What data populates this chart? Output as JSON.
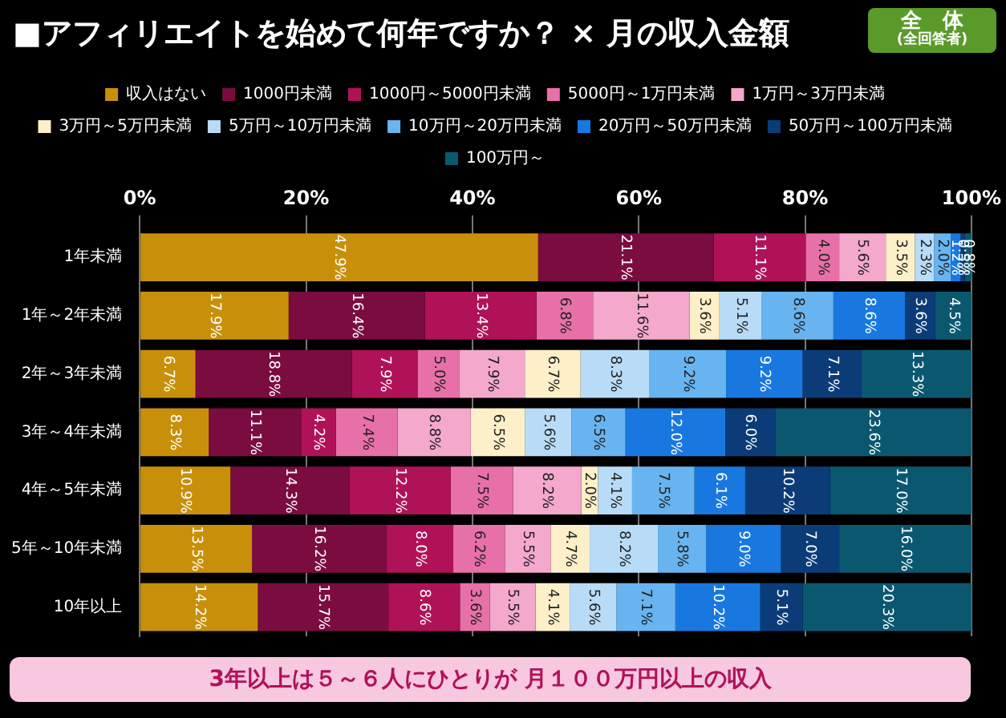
{
  "chart_data": {
    "type": "bar",
    "orientation": "horizontal",
    "stacked": true,
    "title": "■アフィリエイトを始めて何年ですか？ × 月の収入金額",
    "subtitle": "全　体 (全回答者)",
    "annotations": [
      "3年以上は５～６人にひとりが 月１００万円以上の収入"
    ],
    "categories": [
      "1年未満",
      "1年～2年未満",
      "2年～3年未満",
      "3年～4年未満",
      "4年～5年未満",
      "5年～10年未満",
      "10年以上"
    ],
    "series": [
      {
        "name": "収入はない",
        "color": "#c8900a",
        "values": [
          47.9,
          17.9,
          6.7,
          8.3,
          10.9,
          13.5,
          14.2
        ],
        "value_labels": [
          "47.9%",
          "17.9%",
          "6.7%",
          "8.3%",
          "10.9%",
          "13.5%",
          "14.2%"
        ]
      },
      {
        "name": "1000円未満",
        "color": "#7a0c40",
        "values": [
          21.1,
          16.4,
          18.8,
          11.1,
          14.3,
          16.2,
          15.7
        ],
        "value_labels": [
          "21.1%",
          "16.4%",
          "18.8%",
          "11.1%",
          "14.3%",
          "16.2%",
          "15.7%"
        ]
      },
      {
        "name": "1000円～5000円未満",
        "color": "#b01258",
        "values": [
          11.1,
          13.4,
          7.9,
          4.2,
          12.2,
          8.0,
          8.6
        ],
        "value_labels": [
          "11.1%",
          "13.4%",
          "7.9%",
          "4.2%",
          "12.2%",
          "8.0%",
          "8.6%"
        ]
      },
      {
        "name": "5000円～1万円未満",
        "color": "#e870a8",
        "values": [
          4.0,
          6.8,
          5.0,
          7.4,
          7.5,
          6.2,
          3.6
        ],
        "value_labels": [
          "4.0%",
          "6.8%",
          "5.0%",
          "7.4%",
          "7.5%",
          "6.2%",
          "3.6%"
        ]
      },
      {
        "name": "1万円～3万円未満",
        "color": "#f4a8cc",
        "values": [
          5.6,
          11.6,
          7.9,
          8.8,
          8.2,
          5.5,
          5.5
        ],
        "value_labels": [
          "5.6%",
          "11.6%",
          "7.9%",
          "8.8%",
          "8.2%",
          "5.5%",
          "5.5%"
        ]
      },
      {
        "name": "3万円～5万円未満",
        "color": "#fdf0c8",
        "values": [
          3.5,
          3.6,
          6.7,
          6.5,
          2.0,
          4.7,
          4.1
        ],
        "value_labels": [
          "3.5%",
          "3.6%",
          "6.7%",
          "6.5%",
          "2.0%",
          "4.7%",
          "4.1%"
        ]
      },
      {
        "name": "5万円～10万円未満",
        "color": "#b8dcf8",
        "values": [
          2.3,
          5.1,
          8.3,
          5.6,
          4.1,
          8.2,
          5.6
        ],
        "value_labels": [
          "2.3%",
          "5.1%",
          "8.3%",
          "5.6%",
          "4.1%",
          "8.2%",
          "5.6%"
        ]
      },
      {
        "name": "10万円～20万円未満",
        "color": "#68b4f0",
        "values": [
          2.0,
          8.6,
          9.2,
          6.5,
          7.5,
          5.8,
          7.1
        ],
        "value_labels": [
          "2.0%",
          "8.6%",
          "9.2%",
          "6.5%",
          "7.5%",
          "5.8%",
          "7.1%"
        ]
      },
      {
        "name": "20万円～50万円未満",
        "color": "#1878e0",
        "values": [
          1.2,
          8.6,
          9.2,
          12.0,
          6.1,
          9.0,
          10.2
        ],
        "value_labels": [
          "1.2%",
          "8.6%",
          "9.2%",
          "12.0%",
          "6.1%",
          "9.0%",
          "10.2%"
        ]
      },
      {
        "name": "50万円～100万円未満",
        "color": "#0c3c78",
        "values": [
          0.5,
          3.6,
          7.1,
          6.0,
          10.2,
          7.0,
          5.1
        ],
        "value_labels": [
          "0.5%",
          "3.6%",
          "7.1%",
          "6.0%",
          "10.2%",
          "7.0%",
          "5.1%"
        ]
      },
      {
        "name": "100万円～",
        "color": "#0a5870",
        "values": [
          0.8,
          4.5,
          13.3,
          23.6,
          17.0,
          16.0,
          20.3
        ],
        "value_labels": [
          "0.8%",
          "4.5%",
          "13.3%",
          "23.6%",
          "17.0%",
          "16.0%",
          "20.3%"
        ]
      }
    ],
    "xlim": [
      0,
      100
    ],
    "xticks": [
      {
        "value": 0,
        "label": "0%"
      },
      {
        "value": 20,
        "label": "20%"
      },
      {
        "value": 40,
        "label": "40%"
      },
      {
        "value": 60,
        "label": "60%"
      },
      {
        "value": 80,
        "label": "80%"
      },
      {
        "value": 100,
        "label": "100%"
      }
    ],
    "grid": "x",
    "legend": "top"
  }
}
